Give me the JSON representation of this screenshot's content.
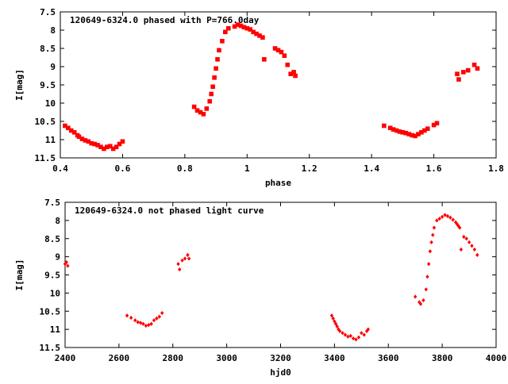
{
  "chart_data": [
    {
      "type": "scatter",
      "title": "120649-6324.0 phased with P=766.0day",
      "xlabel": "phase",
      "ylabel": "I[mag]",
      "xlim": [
        0.4,
        1.8
      ],
      "ylim": [
        7.5,
        11.5
      ],
      "y_inverted": true,
      "x_ticks": [
        "0.4",
        "0.6",
        "0.8",
        "1",
        "1.2",
        "1.4",
        "1.6",
        "1.8"
      ],
      "y_ticks": [
        "7.5",
        "8",
        "8.5",
        "9",
        "9.5",
        "10",
        "10.5",
        "11",
        "11.5"
      ],
      "grid": false,
      "marker": "filled-square",
      "series": [
        {
          "color": "#ff0000",
          "x": [
            0.415,
            0.425,
            0.435,
            0.445,
            0.455,
            0.46,
            0.47,
            0.48,
            0.49,
            0.5,
            0.51,
            0.52,
            0.53,
            0.54,
            0.55,
            0.56,
            0.57,
            0.58,
            0.59,
            0.6,
            0.83,
            0.84,
            0.85,
            0.86,
            0.87,
            0.88,
            0.885,
            0.89,
            0.895,
            0.9,
            0.905,
            0.91,
            0.92,
            0.93,
            0.94,
            0.96,
            0.97,
            0.98,
            0.99,
            1.0,
            1.01,
            1.02,
            1.03,
            1.04,
            1.05,
            1.055,
            1.09,
            1.1,
            1.11,
            1.12,
            1.13,
            1.14,
            1.15,
            1.155,
            1.44,
            1.46,
            1.47,
            1.48,
            1.49,
            1.5,
            1.51,
            1.52,
            1.53,
            1.54,
            1.55,
            1.56,
            1.57,
            1.58,
            1.6,
            1.61,
            1.675,
            1.68,
            1.695,
            1.71,
            1.73,
            1.74
          ],
          "y": [
            10.62,
            10.68,
            10.75,
            10.8,
            10.88,
            10.92,
            10.98,
            11.02,
            11.05,
            11.1,
            11.12,
            11.15,
            11.2,
            11.25,
            11.2,
            11.18,
            11.25,
            11.2,
            11.12,
            11.05,
            10.1,
            10.2,
            10.25,
            10.3,
            10.15,
            9.95,
            9.75,
            9.55,
            9.3,
            9.05,
            8.8,
            8.55,
            8.3,
            8.05,
            7.95,
            7.9,
            7.85,
            7.88,
            7.92,
            7.95,
            7.98,
            8.05,
            8.1,
            8.15,
            8.2,
            8.8,
            8.5,
            8.55,
            8.6,
            8.7,
            8.95,
            9.2,
            9.15,
            9.25,
            10.62,
            10.68,
            10.72,
            10.75,
            10.78,
            10.8,
            10.82,
            10.85,
            10.88,
            10.9,
            10.85,
            10.8,
            10.75,
            10.7,
            10.6,
            10.55,
            9.2,
            9.35,
            9.15,
            9.1,
            8.95,
            9.05
          ]
        }
      ]
    },
    {
      "type": "scatter",
      "title": "120649-6324.0 not phased light curve",
      "xlabel": "hjd0",
      "ylabel": "I[mag]",
      "xlim": [
        2400,
        4000
      ],
      "ylim": [
        7.5,
        11.5
      ],
      "y_inverted": true,
      "x_ticks": [
        "2400",
        "2600",
        "2800",
        "3000",
        "3200",
        "3400",
        "3600",
        "3800",
        "4000"
      ],
      "y_ticks": [
        "7.5",
        "8",
        "8.5",
        "9",
        "9.5",
        "10",
        "10.5",
        "11",
        "11.5"
      ],
      "grid": false,
      "marker": "filled-diamond",
      "series": [
        {
          "color": "#ff0000",
          "x": [
            2400,
            2405,
            2410,
            2630,
            2645,
            2660,
            2670,
            2680,
            2690,
            2700,
            2710,
            2720,
            2730,
            2740,
            2750,
            2760,
            2820,
            2825,
            2835,
            2845,
            2855,
            2860,
            3390,
            3395,
            3400,
            3405,
            3410,
            3415,
            3420,
            3430,
            3440,
            3450,
            3460,
            3470,
            3480,
            3490,
            3500,
            3510,
            3520,
            3525,
            3700,
            3715,
            3720,
            3730,
            3740,
            3745,
            3750,
            3755,
            3760,
            3765,
            3770,
            3780,
            3790,
            3800,
            3810,
            3820,
            3830,
            3840,
            3850,
            3855,
            3860,
            3865,
            3870,
            3880,
            3890,
            3900,
            3910,
            3920,
            3930
          ],
          "y": [
            9.2,
            9.15,
            9.25,
            10.62,
            10.68,
            10.75,
            10.8,
            10.82,
            10.85,
            10.9,
            10.88,
            10.85,
            10.75,
            10.7,
            10.65,
            10.55,
            9.2,
            9.35,
            9.1,
            9.05,
            8.95,
            9.05,
            10.62,
            10.7,
            10.78,
            10.85,
            10.92,
            11.0,
            11.05,
            11.1,
            11.15,
            11.2,
            11.18,
            11.25,
            11.28,
            11.22,
            11.1,
            11.15,
            11.05,
            11.0,
            10.1,
            10.25,
            10.3,
            10.2,
            9.9,
            9.55,
            9.2,
            8.85,
            8.6,
            8.4,
            8.2,
            8.0,
            7.95,
            7.9,
            7.85,
            7.88,
            7.92,
            7.98,
            8.05,
            8.1,
            8.15,
            8.2,
            8.8,
            8.45,
            8.5,
            8.6,
            8.7,
            8.8,
            8.95
          ]
        }
      ]
    }
  ]
}
